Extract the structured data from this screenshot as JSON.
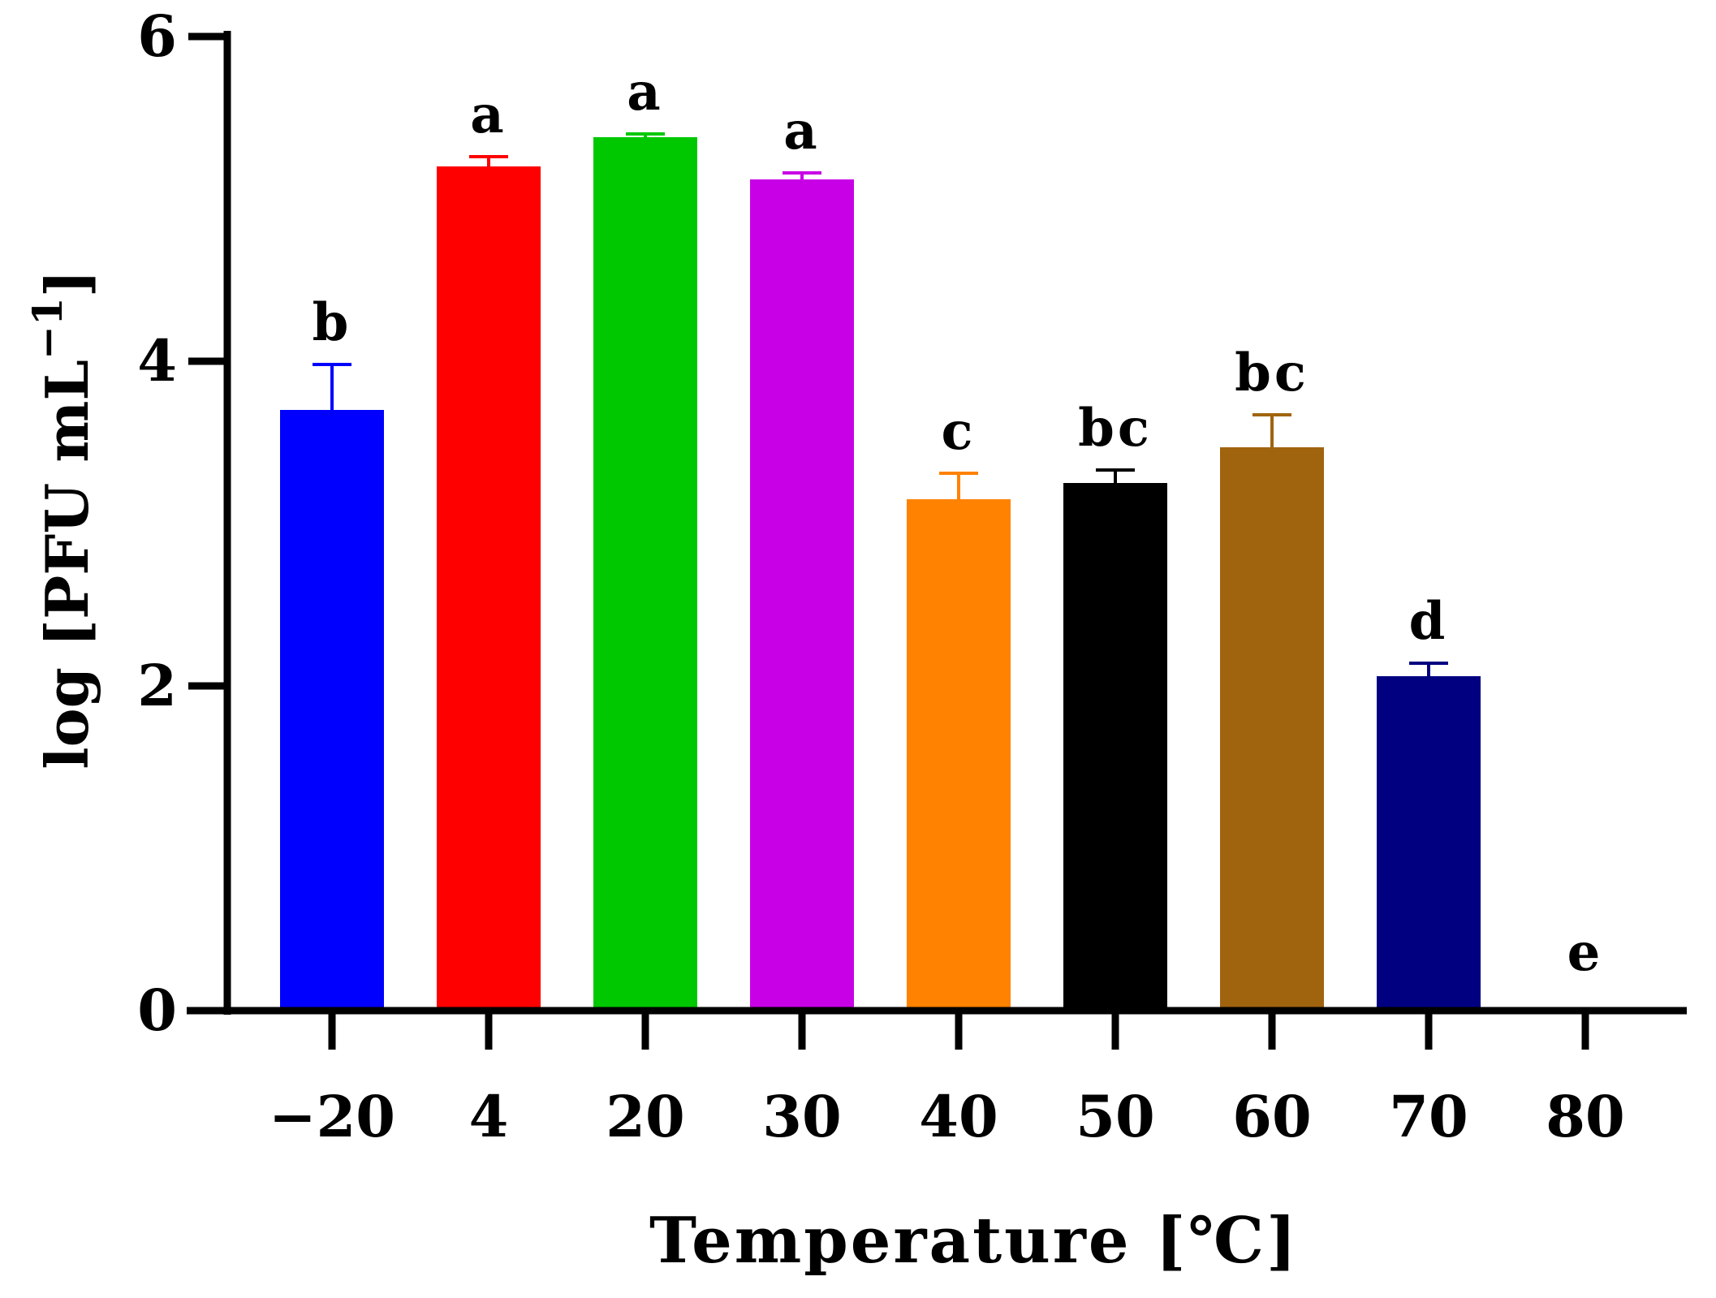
{
  "chart_data": {
    "type": "bar",
    "title": "",
    "xlabel": "Temperature [℃]",
    "ylabel": {
      "main": "log [PFU mL",
      "superscript": "−1",
      "close": "]"
    },
    "categories": [
      "−20",
      "4",
      "20",
      "30",
      "40",
      "50",
      "60",
      "70",
      "80"
    ],
    "values": [
      3.7,
      5.2,
      5.38,
      5.12,
      3.15,
      3.25,
      3.47,
      2.06,
      0
    ],
    "errors": [
      0.28,
      0.06,
      0.02,
      0.04,
      0.16,
      0.08,
      0.2,
      0.08,
      0
    ],
    "significance_letters": [
      "b",
      "a",
      "a",
      "a",
      "c",
      "bc",
      "bc",
      "d",
      "e"
    ],
    "colors": [
      "#0000FF",
      "#FF0000",
      "#00C800",
      "#C800E6",
      "#FF8200",
      "#000000",
      "#A0640F",
      "#000080",
      "#000000"
    ],
    "yticks": [
      0,
      2,
      4,
      6
    ],
    "ylim": [
      0,
      6
    ],
    "grid": false,
    "legend": "none"
  }
}
